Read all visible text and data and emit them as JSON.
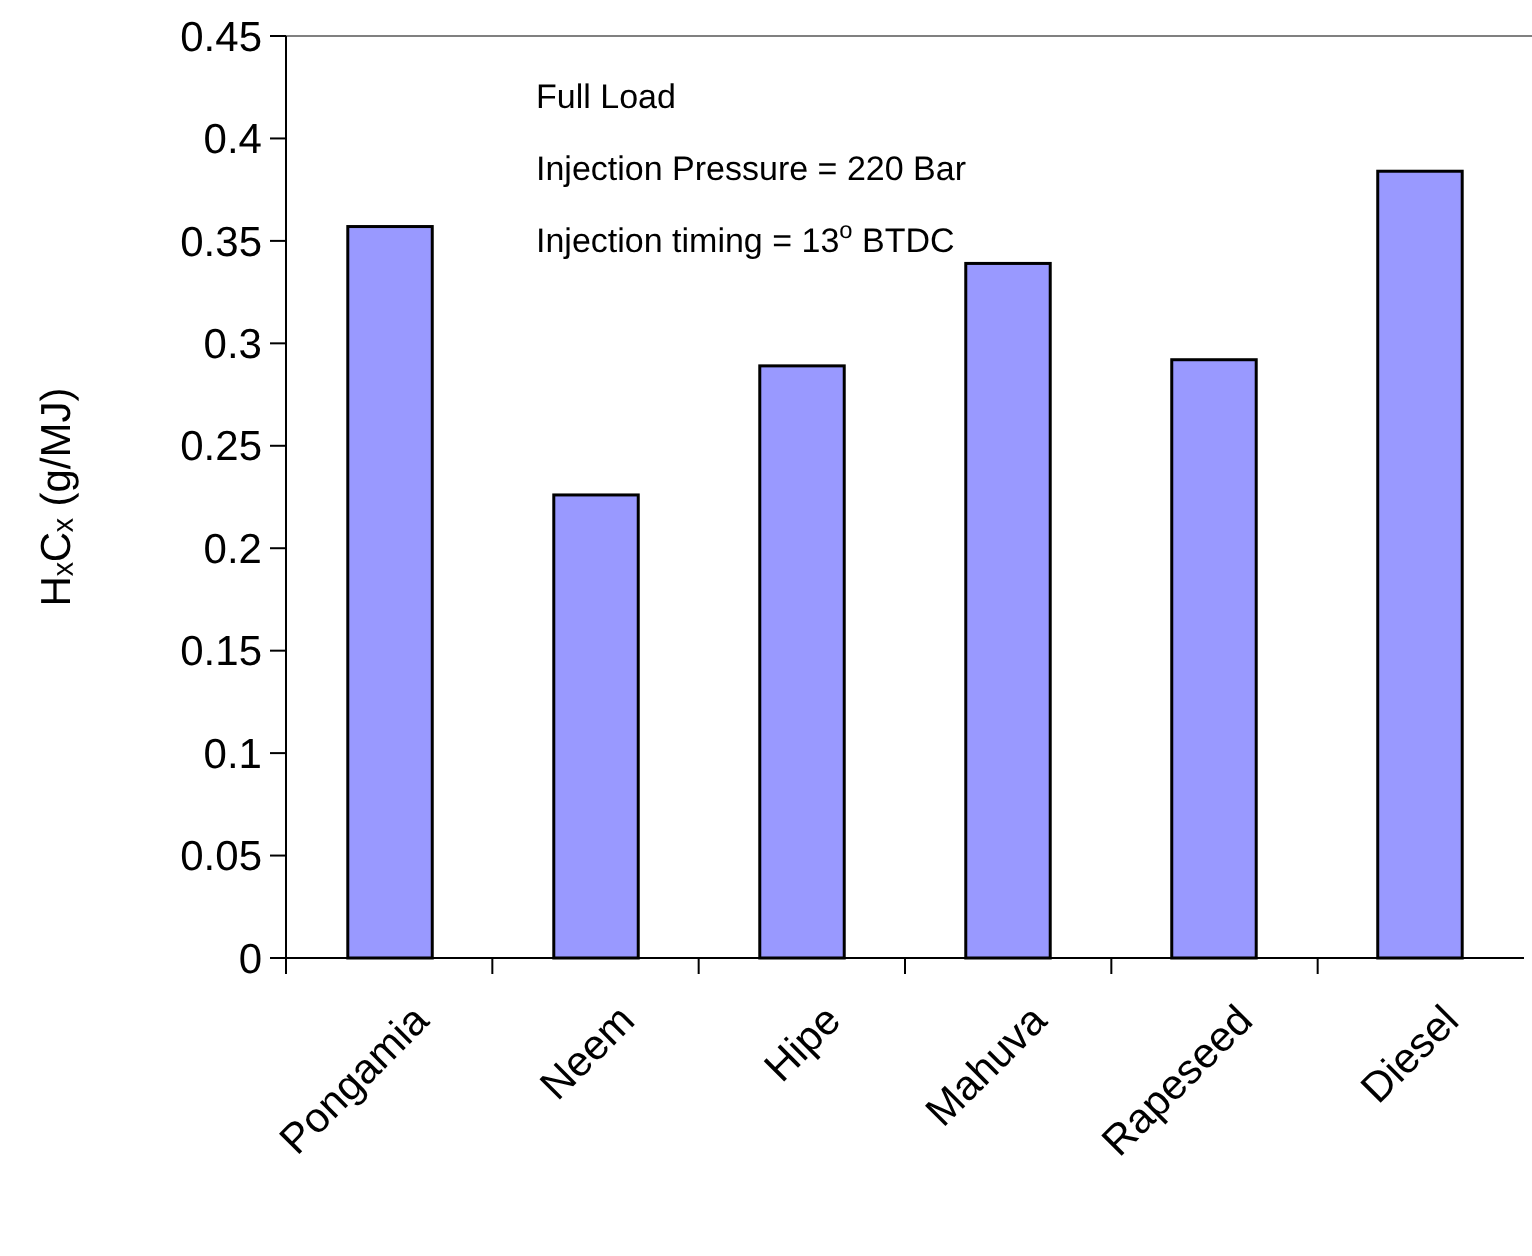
{
  "chart_data": {
    "type": "bar",
    "ylabel": "HₓCₓ (g/MJ)",
    "categories": [
      "Pongamia",
      "Neem",
      "Hipe",
      "Mahuva",
      "Rapeseed",
      "Diesel"
    ],
    "values": [
      0.357,
      0.226,
      0.289,
      0.339,
      0.292,
      0.384
    ],
    "color": "#9999ff",
    "ylim": [
      0,
      0.45
    ],
    "yticks": [
      0,
      0.05,
      0.1,
      0.15,
      0.2,
      0.25,
      0.3,
      0.35,
      0.4,
      0.45
    ],
    "annotations": [
      "Full Load",
      "Injection Pressure = 220 Bar",
      "Injection timing = 13$^{o}$ BTDC"
    ],
    "grid": false
  }
}
